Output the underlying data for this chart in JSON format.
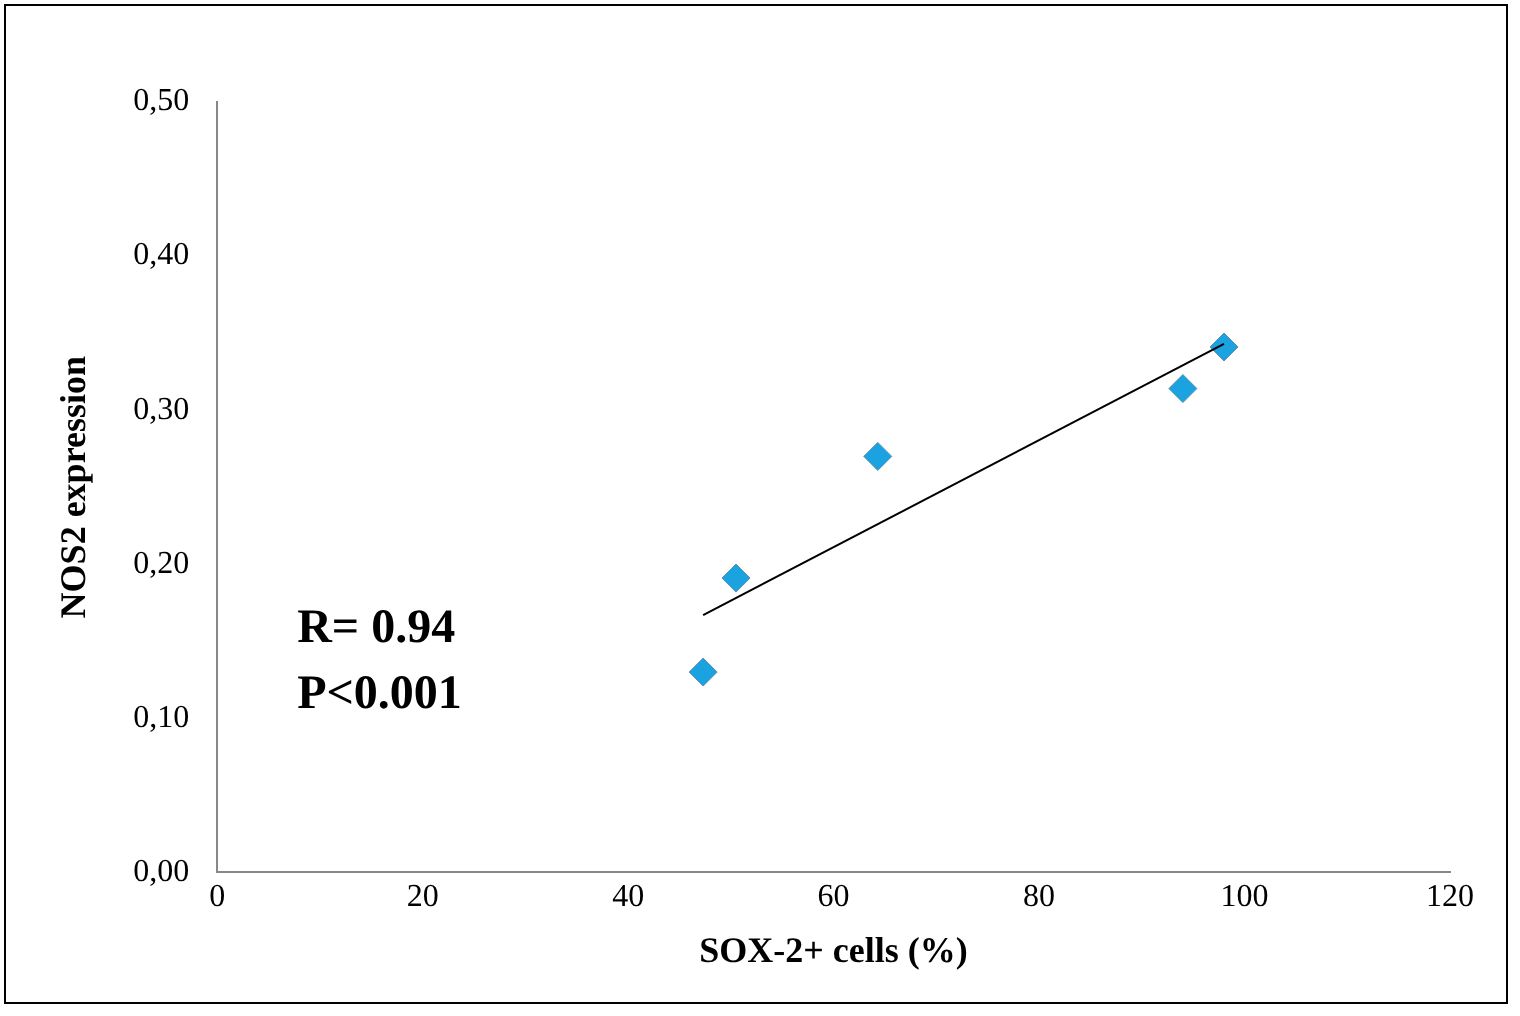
{
  "chart_data": {
    "type": "scatter",
    "xlabel": "SOX-2+ cells (%)",
    "ylabel": "NOS2 expression",
    "xlim": [
      0,
      120
    ],
    "xticks": [
      0,
      20,
      40,
      60,
      80,
      100,
      120
    ],
    "ylim": [
      0,
      0.5
    ],
    "yticks": [
      {
        "value": 0,
        "label": "0,00"
      },
      {
        "value": 0.1,
        "label": "0,10"
      },
      {
        "value": 0.2,
        "label": "0,20"
      },
      {
        "value": 0.3,
        "label": "0,30"
      },
      {
        "value": 0.4,
        "label": "0,40"
      },
      {
        "value": 0.5,
        "label": "0,50"
      }
    ],
    "grid": false,
    "legend": false,
    "annotations": [
      "R= 0.94",
      "P<0.001"
    ],
    "series": [
      {
        "color": "#1aa3e0",
        "marker": "diamond",
        "x": [
          47.3,
          50.5,
          64.3,
          94,
          98
        ],
        "values": [
          0.13,
          0.191,
          0.27,
          0.314,
          0.341
        ]
      },
      {
        "type": "line",
        "color": "#000000",
        "marker": "none",
        "x": [
          47.3,
          98
        ],
        "values": [
          0.167,
          0.343
        ]
      }
    ]
  }
}
